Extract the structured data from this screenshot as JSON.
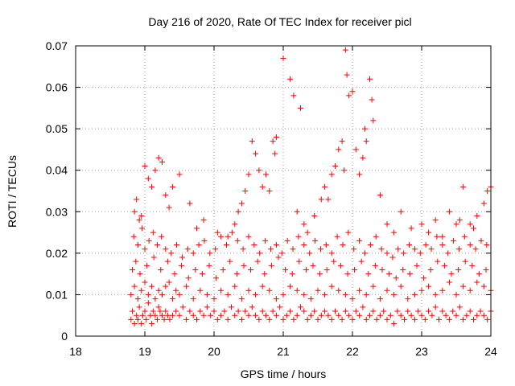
{
  "chart_data": {
    "type": "scatter",
    "title": "Day 216 of 2020, Rate Of TEC Index for receiver picl",
    "xlabel": "GPS time / hours",
    "ylabel": "ROTI / TECUs",
    "xlim": [
      18,
      24
    ],
    "ylim": [
      0,
      0.07
    ],
    "xticks": [
      18,
      19,
      20,
      21,
      22,
      23,
      24
    ],
    "xtick_labels": [
      "18",
      "19",
      "20",
      "21",
      "22",
      "23",
      "24"
    ],
    "yticks": [
      0,
      0.01,
      0.02,
      0.03,
      0.04,
      0.05,
      0.06,
      0.07
    ],
    "ytick_labels": [
      "0",
      "0.01",
      "0.02",
      "0.03",
      "0.04",
      "0.05",
      "0.06",
      "0.07"
    ],
    "grid": true,
    "marker": "plus",
    "color": "#ff0000",
    "series": [
      {
        "name": "ROTI",
        "x": [
          18.8,
          18.82,
          18.85,
          18.88,
          18.9,
          18.92,
          18.95,
          18.97,
          19.0,
          19.02,
          19.05,
          19.08,
          19.1,
          19.12,
          19.15,
          19.18,
          19.2,
          19.22,
          19.25,
          19.28,
          19.3,
          19.33,
          19.36,
          19.4,
          19.45,
          19.5,
          19.55,
          19.6,
          19.65,
          19.7,
          19.75,
          19.8,
          19.85,
          19.9,
          19.95,
          20.0,
          20.05,
          20.1,
          20.15,
          20.2,
          20.25,
          20.3,
          20.35,
          20.4,
          20.45,
          20.5,
          20.55,
          20.6,
          20.65,
          20.7,
          20.75,
          20.8,
          20.85,
          20.9,
          20.95,
          21.0,
          21.05,
          21.1,
          21.15,
          21.2,
          21.25,
          21.3,
          21.35,
          21.4,
          21.45,
          21.5,
          21.55,
          21.6,
          21.65,
          21.7,
          21.75,
          21.8,
          21.85,
          21.9,
          21.95,
          22.0,
          22.05,
          22.1,
          22.15,
          22.2,
          22.25,
          22.3,
          22.35,
          22.4,
          22.45,
          22.5,
          22.55,
          22.6,
          22.65,
          22.7,
          22.75,
          22.8,
          22.85,
          22.9,
          22.95,
          23.0,
          23.05,
          23.1,
          23.15,
          23.2,
          23.25,
          23.3,
          23.35,
          23.4,
          23.45,
          23.5,
          23.55,
          23.6,
          23.65,
          23.7,
          23.75,
          23.8,
          23.85,
          23.9,
          23.95,
          24.0,
          18.8,
          18.85,
          18.9,
          18.95,
          19.0,
          19.05,
          19.1,
          19.15,
          19.2,
          19.25,
          19.3,
          19.35,
          19.4,
          19.45,
          19.5,
          19.6,
          19.7,
          19.8,
          19.9,
          20.0,
          20.1,
          20.2,
          20.3,
          20.4,
          20.5,
          20.6,
          20.7,
          20.8,
          20.9,
          21.0,
          21.1,
          21.2,
          21.3,
          21.4,
          21.5,
          21.6,
          21.7,
          21.8,
          21.9,
          22.0,
          22.1,
          22.2,
          22.3,
          22.4,
          22.5,
          22.6,
          22.7,
          22.8,
          22.9,
          23.0,
          23.1,
          23.2,
          23.3,
          23.4,
          23.5,
          23.6,
          23.7,
          23.8,
          23.9,
          24.0,
          18.82,
          18.87,
          18.93,
          19.03,
          19.13,
          19.23,
          19.33,
          19.43,
          19.53,
          19.63,
          19.73,
          19.83,
          19.93,
          20.03,
          20.13,
          20.23,
          20.33,
          20.43,
          20.53,
          20.63,
          20.73,
          20.83,
          20.93,
          21.03,
          21.13,
          21.23,
          21.33,
          21.43,
          21.53,
          21.63,
          21.73,
          21.83,
          21.93,
          22.03,
          22.13,
          22.23,
          22.33,
          22.43,
          22.53,
          22.63,
          22.73,
          22.83,
          22.93,
          23.03,
          23.13,
          23.23,
          23.33,
          23.43,
          23.53,
          23.63,
          23.73,
          23.83,
          23.93,
          18.84,
          18.9,
          18.96,
          19.0,
          19.06,
          19.12,
          19.18,
          19.24,
          19.3,
          19.38,
          19.46,
          19.54,
          19.62,
          19.7,
          19.78,
          19.86,
          19.94,
          20.02,
          20.1,
          20.18,
          20.26,
          20.34,
          20.42,
          20.5,
          20.58,
          20.66,
          20.74,
          20.82,
          20.9,
          20.98,
          21.06,
          21.14,
          21.22,
          21.3,
          21.38,
          21.46,
          21.54,
          21.62,
          21.7,
          21.78,
          21.86,
          21.94,
          22.02,
          22.1,
          22.18,
          22.26,
          22.34,
          22.42,
          22.5,
          22.58,
          22.66,
          22.74,
          22.82,
          22.9,
          22.98,
          23.06,
          23.14,
          23.22,
          23.3,
          23.38,
          23.46,
          23.54,
          23.62,
          23.7,
          23.78,
          23.86,
          23.94,
          18.85,
          18.88,
          18.92,
          18.95,
          19.0,
          19.05,
          19.1,
          19.15,
          19.2,
          19.25,
          19.3,
          19.35,
          19.4,
          19.5,
          19.65,
          19.75,
          19.85,
          20.05,
          20.2,
          20.3,
          20.35,
          20.4,
          20.45,
          20.5,
          20.55,
          20.6,
          20.65,
          20.7,
          20.75,
          20.8,
          20.85,
          20.88,
          20.9,
          21.0,
          21.1,
          21.15,
          21.2,
          21.25,
          21.3,
          21.35,
          21.45,
          21.55,
          21.6,
          21.65,
          21.7,
          21.75,
          21.8,
          21.85,
          21.88,
          21.9,
          21.92,
          21.95,
          22.0,
          22.05,
          22.1,
          22.15,
          22.18,
          22.2,
          22.25,
          22.28,
          22.3,
          22.4,
          22.5,
          22.6,
          22.7,
          22.85,
          23.0,
          23.1,
          23.2,
          23.3,
          23.4,
          23.5,
          23.55,
          23.6,
          23.7,
          23.75,
          23.8,
          23.9,
          23.95,
          24.0
        ],
        "y": [
          0.004,
          0.006,
          0.003,
          0.005,
          0.004,
          0.007,
          0.003,
          0.005,
          0.006,
          0.004,
          0.008,
          0.005,
          0.003,
          0.006,
          0.005,
          0.004,
          0.007,
          0.006,
          0.005,
          0.004,
          0.006,
          0.005,
          0.004,
          0.005,
          0.006,
          0.005,
          0.007,
          0.004,
          0.006,
          0.005,
          0.004,
          0.006,
          0.005,
          0.007,
          0.005,
          0.006,
          0.004,
          0.005,
          0.006,
          0.004,
          0.007,
          0.005,
          0.006,
          0.004,
          0.006,
          0.005,
          0.007,
          0.005,
          0.004,
          0.006,
          0.005,
          0.004,
          0.006,
          0.005,
          0.007,
          0.004,
          0.005,
          0.006,
          0.004,
          0.005,
          0.007,
          0.006,
          0.004,
          0.005,
          0.006,
          0.004,
          0.005,
          0.006,
          0.005,
          0.004,
          0.006,
          0.005,
          0.004,
          0.006,
          0.005,
          0.004,
          0.006,
          0.005,
          0.007,
          0.004,
          0.005,
          0.006,
          0.004,
          0.005,
          0.006,
          0.004,
          0.005,
          0.003,
          0.006,
          0.005,
          0.004,
          0.006,
          0.005,
          0.004,
          0.006,
          0.005,
          0.004,
          0.006,
          0.005,
          0.007,
          0.004,
          0.006,
          0.005,
          0.004,
          0.006,
          0.005,
          0.007,
          0.004,
          0.005,
          0.006,
          0.004,
          0.005,
          0.006,
          0.005,
          0.004,
          0.006,
          0.01,
          0.012,
          0.009,
          0.011,
          0.013,
          0.01,
          0.012,
          0.009,
          0.011,
          0.01,
          0.012,
          0.013,
          0.009,
          0.011,
          0.01,
          0.012,
          0.009,
          0.011,
          0.01,
          0.009,
          0.011,
          0.01,
          0.012,
          0.009,
          0.011,
          0.01,
          0.012,
          0.011,
          0.009,
          0.01,
          0.012,
          0.011,
          0.01,
          0.009,
          0.011,
          0.01,
          0.012,
          0.011,
          0.01,
          0.009,
          0.011,
          0.01,
          0.012,
          0.009,
          0.011,
          0.01,
          0.012,
          0.009,
          0.01,
          0.011,
          0.012,
          0.01,
          0.011,
          0.013,
          0.01,
          0.012,
          0.011,
          0.013,
          0.012,
          0.011,
          0.016,
          0.018,
          0.015,
          0.017,
          0.019,
          0.016,
          0.018,
          0.015,
          0.017,
          0.014,
          0.016,
          0.015,
          0.017,
          0.014,
          0.016,
          0.018,
          0.015,
          0.017,
          0.016,
          0.018,
          0.015,
          0.017,
          0.019,
          0.016,
          0.015,
          0.018,
          0.016,
          0.017,
          0.015,
          0.016,
          0.018,
          0.017,
          0.015,
          0.016,
          0.018,
          0.015,
          0.017,
          0.016,
          0.015,
          0.014,
          0.016,
          0.015,
          0.017,
          0.014,
          0.016,
          0.018,
          0.017,
          0.015,
          0.016,
          0.018,
          0.017,
          0.015,
          0.016,
          0.024,
          0.022,
          0.026,
          0.021,
          0.023,
          0.025,
          0.022,
          0.024,
          0.021,
          0.02,
          0.022,
          0.019,
          0.021,
          0.02,
          0.022,
          0.023,
          0.02,
          0.021,
          0.024,
          0.022,
          0.025,
          0.023,
          0.021,
          0.024,
          0.022,
          0.02,
          0.023,
          0.021,
          0.022,
          0.02,
          0.023,
          0.021,
          0.024,
          0.022,
          0.02,
          0.023,
          0.021,
          0.022,
          0.02,
          0.024,
          0.022,
          0.025,
          0.021,
          0.023,
          0.02,
          0.022,
          0.024,
          0.021,
          0.02,
          0.019,
          0.021,
          0.02,
          0.022,
          0.021,
          0.02,
          0.022,
          0.021,
          0.024,
          0.022,
          0.02,
          0.023,
          0.021,
          0.024,
          0.022,
          0.021,
          0.023,
          0.022,
          0.03,
          0.033,
          0.028,
          0.029,
          0.041,
          0.038,
          0.036,
          0.04,
          0.043,
          0.042,
          0.034,
          0.031,
          0.036,
          0.039,
          0.032,
          0.026,
          0.028,
          0.025,
          0.024,
          0.027,
          0.03,
          0.032,
          0.035,
          0.039,
          0.047,
          0.044,
          0.04,
          0.036,
          0.039,
          0.035,
          0.047,
          0.044,
          0.048,
          0.067,
          0.062,
          0.058,
          0.03,
          0.055,
          0.027,
          0.025,
          0.029,
          0.033,
          0.036,
          0.033,
          0.039,
          0.041,
          0.045,
          0.047,
          0.04,
          0.069,
          0.063,
          0.058,
          0.059,
          0.045,
          0.039,
          0.043,
          0.05,
          0.047,
          0.062,
          0.057,
          0.052,
          0.034,
          0.027,
          0.025,
          0.03,
          0.026,
          0.027,
          0.025,
          0.028,
          0.024,
          0.03,
          0.027,
          0.028,
          0.036,
          0.027,
          0.026,
          0.029,
          0.032,
          0.035,
          0.036
        ]
      }
    ]
  }
}
